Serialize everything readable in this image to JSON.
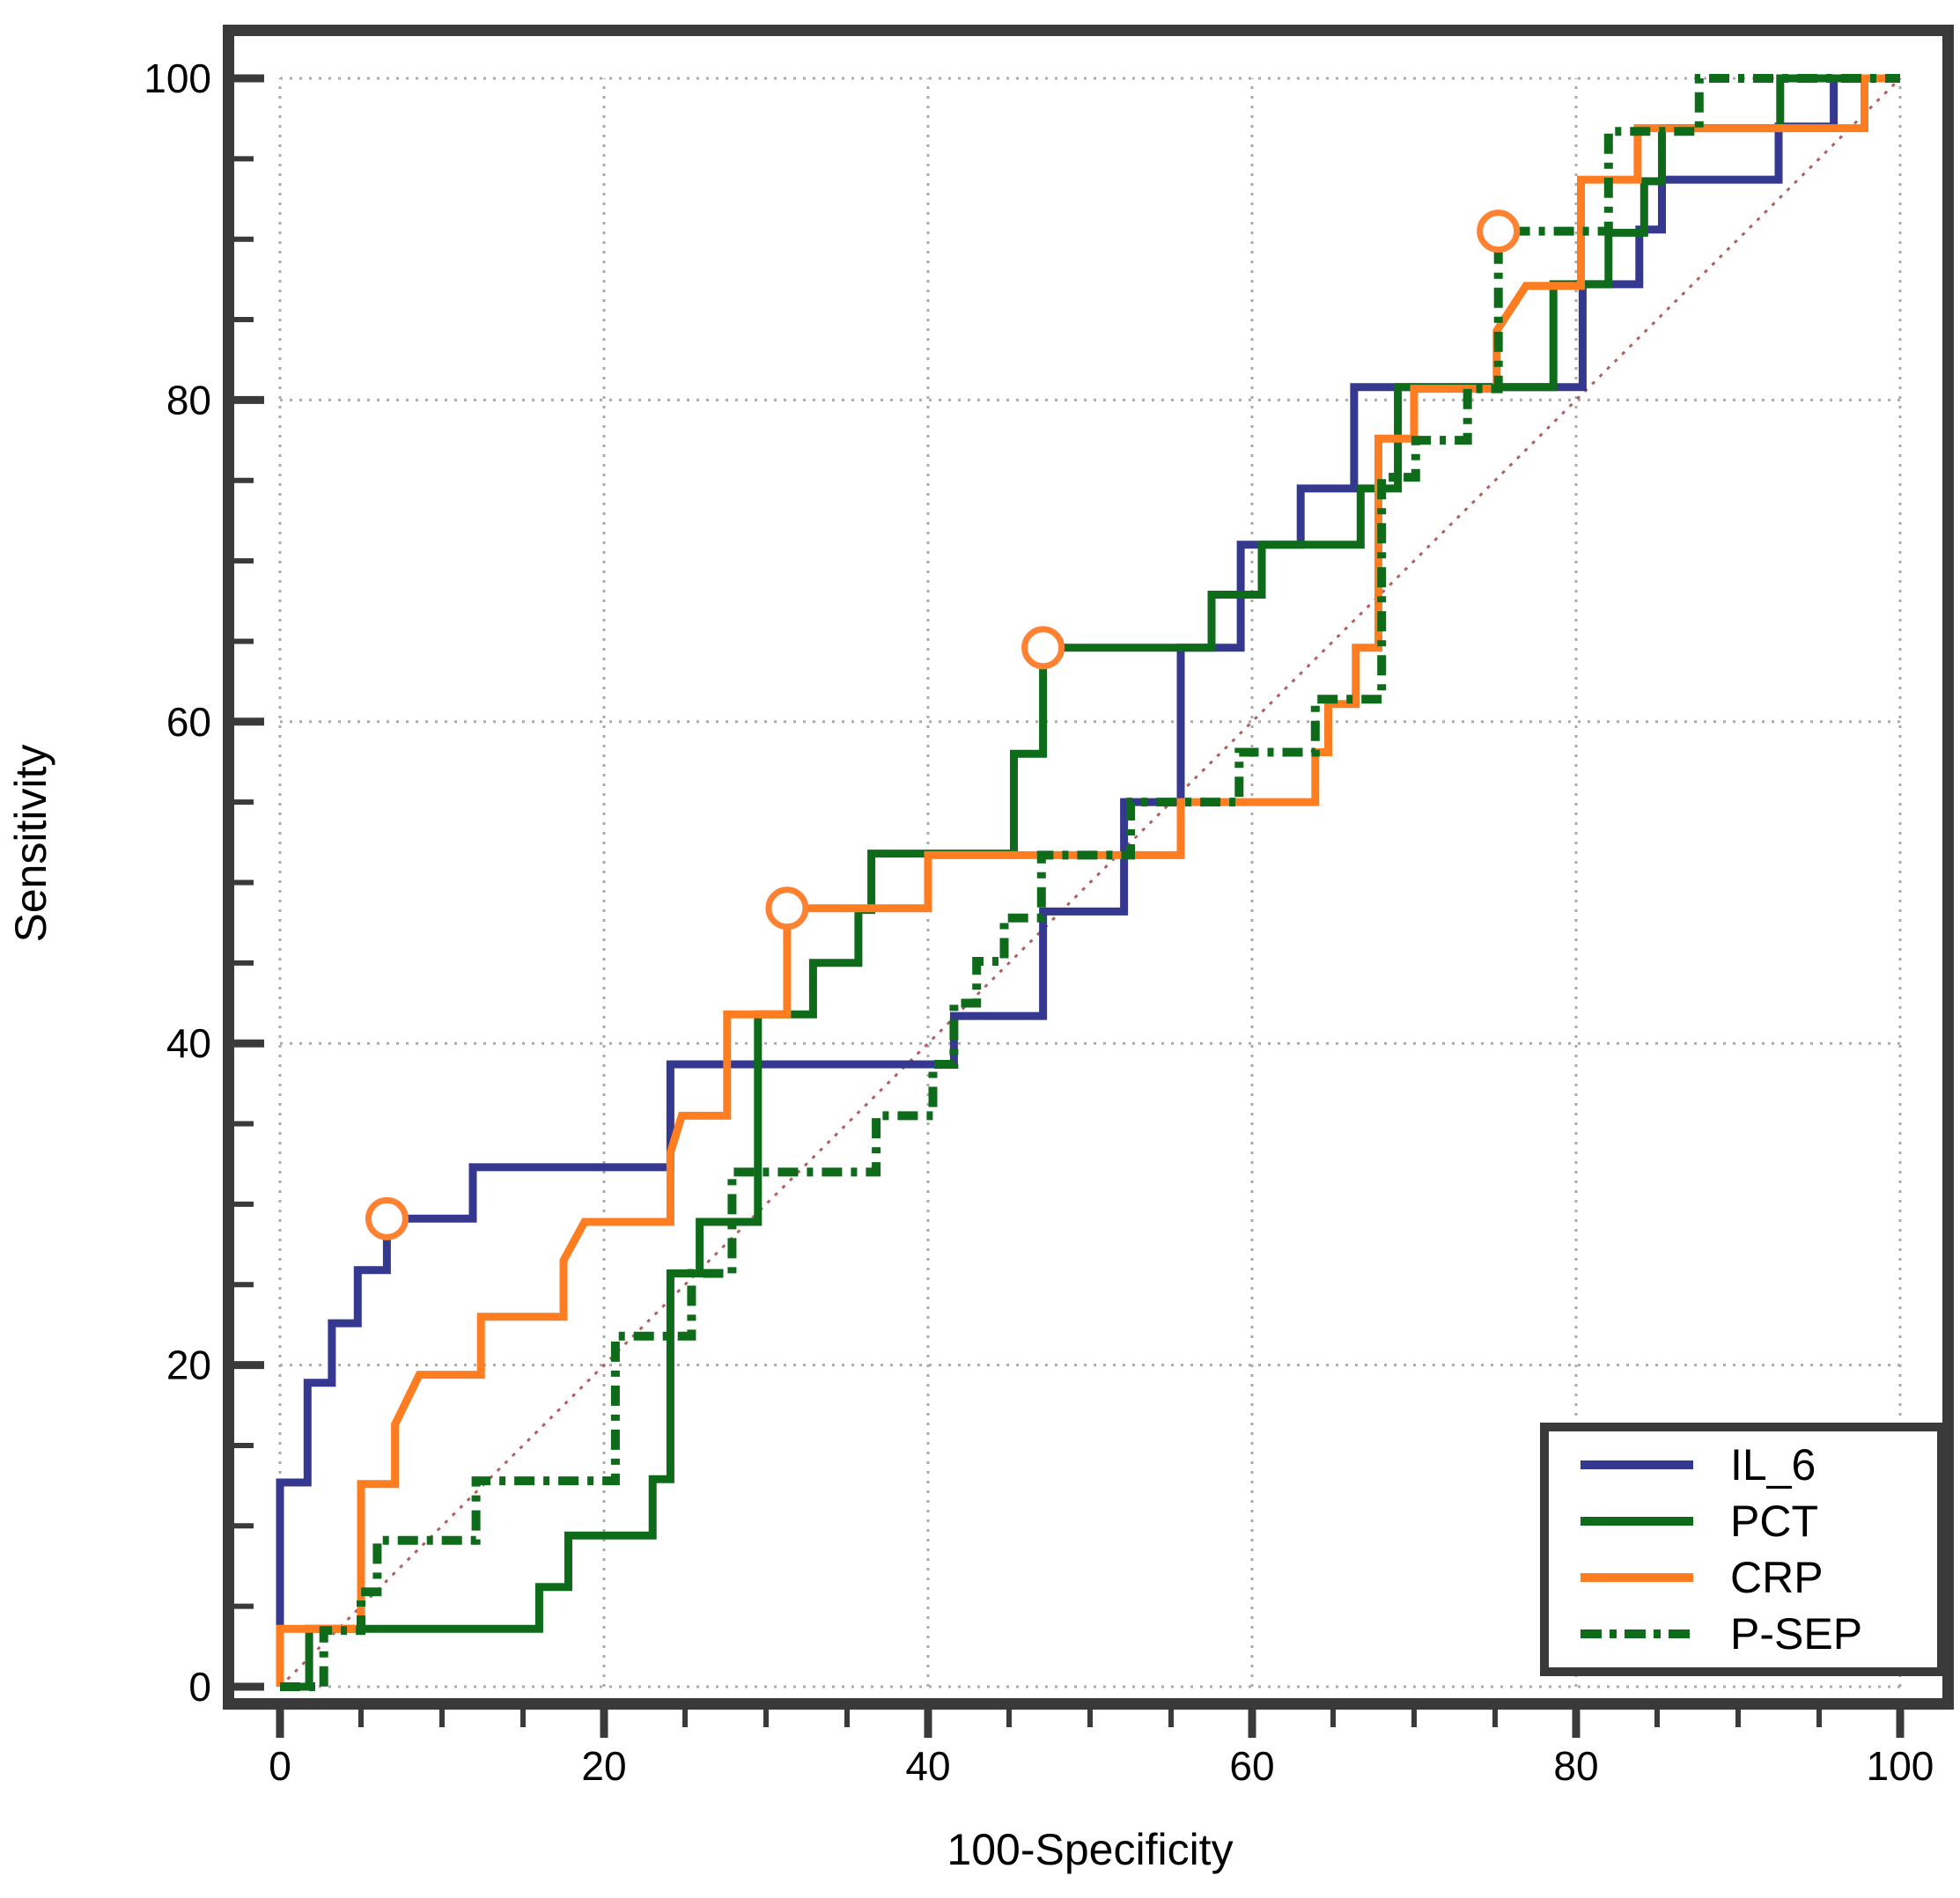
{
  "figure": {
    "background": "#ffffff",
    "frame_color": "#3a3a3a",
    "grid_color": "#ababab",
    "marker_color": "#ff8233",
    "marker_fill": "#ffffff"
  },
  "chart_data": {
    "type": "line",
    "subtype": "roc-curves",
    "title": "",
    "xlabel": "100-Specificity",
    "ylabel": "Sensitivity",
    "xlim": [
      0,
      100
    ],
    "ylim": [
      0,
      100
    ],
    "x_major_ticks": [
      0,
      20,
      40,
      60,
      80,
      100
    ],
    "y_major_ticks": [
      0,
      20,
      40,
      60,
      80,
      100
    ],
    "minor_tick_step": 5,
    "grid": "dotted gridlines at every 20 units on both axes",
    "legend_position": "bottom-right",
    "reference_line": {
      "name": "chance-diagonal",
      "from": [
        0,
        0
      ],
      "to": [
        100,
        100
      ],
      "style": "dotted",
      "color": "#b15f5f"
    },
    "series": [
      {
        "name": "IL_6",
        "color": "#34388f",
        "line_style": "solid",
        "operating_point": [
          6.6,
          29.1
        ],
        "points": [
          [
            0,
            0
          ],
          [
            0,
            12.7
          ],
          [
            1.7,
            12.7
          ],
          [
            1.7,
            18.9
          ],
          [
            3.2,
            18.9
          ],
          [
            3.2,
            22.6
          ],
          [
            4.8,
            22.6
          ],
          [
            4.8,
            25.9
          ],
          [
            6.6,
            25.9
          ],
          [
            6.6,
            29.1
          ],
          [
            11.9,
            29.1
          ],
          [
            11.9,
            32.3
          ],
          [
            24.1,
            32.3
          ],
          [
            24.1,
            38.7
          ],
          [
            41.6,
            38.7
          ],
          [
            41.6,
            41.7
          ],
          [
            47.1,
            41.7
          ],
          [
            47.1,
            48.2
          ],
          [
            52.1,
            48.2
          ],
          [
            52.1,
            55
          ],
          [
            55.6,
            55
          ],
          [
            55.6,
            64.6
          ],
          [
            59.3,
            64.6
          ],
          [
            59.3,
            71
          ],
          [
            63,
            71
          ],
          [
            63,
            74.5
          ],
          [
            66.3,
            74.5
          ],
          [
            66.3,
            80.8
          ],
          [
            80.4,
            80.8
          ],
          [
            80.4,
            87.2
          ],
          [
            83.9,
            87.2
          ],
          [
            83.9,
            90.6
          ],
          [
            85.3,
            90.6
          ],
          [
            85.3,
            93.7
          ],
          [
            92.5,
            93.7
          ],
          [
            92.5,
            97
          ],
          [
            95.9,
            97
          ],
          [
            95.9,
            100
          ],
          [
            100,
            100
          ]
        ]
      },
      {
        "name": "PCT",
        "color": "#0e6b1a",
        "line_style": "solid",
        "operating_point": [
          47.1,
          64.6
        ],
        "points": [
          [
            0,
            0
          ],
          [
            1.8,
            0
          ],
          [
            1.8,
            3.6
          ],
          [
            16,
            3.6
          ],
          [
            16,
            6.2
          ],
          [
            17.8,
            6.2
          ],
          [
            17.8,
            9.4
          ],
          [
            23,
            9.4
          ],
          [
            23,
            12.9
          ],
          [
            24.1,
            12.9
          ],
          [
            24.1,
            25.7
          ],
          [
            25.9,
            25.7
          ],
          [
            25.9,
            28.9
          ],
          [
            29.5,
            28.9
          ],
          [
            29.5,
            41.8
          ],
          [
            32.9,
            41.8
          ],
          [
            32.9,
            45
          ],
          [
            35.7,
            45
          ],
          [
            35.7,
            48.3
          ],
          [
            36.5,
            48.3
          ],
          [
            36.5,
            51.8
          ],
          [
            45.3,
            51.8
          ],
          [
            45.3,
            58
          ],
          [
            47.1,
            58
          ],
          [
            47.1,
            64.6
          ],
          [
            57.5,
            64.6
          ],
          [
            57.5,
            67.9
          ],
          [
            60.6,
            67.9
          ],
          [
            60.6,
            71
          ],
          [
            66.7,
            71
          ],
          [
            66.7,
            74.5
          ],
          [
            69,
            74.5
          ],
          [
            69,
            80.8
          ],
          [
            78.6,
            80.8
          ],
          [
            78.6,
            87.2
          ],
          [
            82,
            87.2
          ],
          [
            82,
            90.4
          ],
          [
            84.2,
            90.4
          ],
          [
            84.2,
            93.6
          ],
          [
            85.3,
            93.6
          ],
          [
            85.3,
            96.9
          ],
          [
            92.6,
            96.9
          ],
          [
            92.6,
            100
          ],
          [
            100,
            100
          ]
        ]
      },
      {
        "name": "CRP",
        "color": "#ff7d21",
        "line_style": "solid",
        "operating_point": [
          31.3,
          48.4
        ],
        "points": [
          [
            0,
            0
          ],
          [
            0,
            3.6
          ],
          [
            5,
            3.6
          ],
          [
            5,
            12.6
          ],
          [
            7.1,
            12.6
          ],
          [
            7.1,
            16.3
          ],
          [
            8.6,
            19.4
          ],
          [
            12.4,
            19.4
          ],
          [
            12.4,
            23
          ],
          [
            17.5,
            23
          ],
          [
            17.5,
            26.5
          ],
          [
            18.8,
            28.9
          ],
          [
            24.1,
            28.9
          ],
          [
            24.1,
            33.2
          ],
          [
            24.8,
            35.5
          ],
          [
            27.6,
            35.5
          ],
          [
            27.6,
            41.8
          ],
          [
            31.3,
            41.8
          ],
          [
            31.3,
            48.4
          ],
          [
            40,
            48.4
          ],
          [
            40,
            51.7
          ],
          [
            55.6,
            51.7
          ],
          [
            55.6,
            55
          ],
          [
            63.9,
            55
          ],
          [
            63.9,
            58.1
          ],
          [
            64.7,
            58.1
          ],
          [
            64.7,
            61.1
          ],
          [
            66.4,
            61.1
          ],
          [
            66.4,
            64.6
          ],
          [
            67.8,
            64.6
          ],
          [
            67.8,
            77.6
          ],
          [
            70,
            77.6
          ],
          [
            70,
            80.7
          ],
          [
            75.1,
            80.7
          ],
          [
            75.1,
            84.3
          ],
          [
            76.9,
            87.1
          ],
          [
            80.3,
            87.1
          ],
          [
            80.3,
            93.7
          ],
          [
            83.8,
            93.7
          ],
          [
            83.8,
            96.9
          ],
          [
            97.8,
            96.9
          ],
          [
            97.8,
            100
          ],
          [
            100,
            100
          ]
        ]
      },
      {
        "name": "P-SEP",
        "color": "#0e6b1a",
        "line_style": "dash-dot",
        "operating_point": [
          75.2,
          90.5
        ],
        "points": [
          [
            0,
            0
          ],
          [
            2.7,
            0
          ],
          [
            2.7,
            3.5
          ],
          [
            5,
            3.5
          ],
          [
            5,
            5.9
          ],
          [
            6,
            5.9
          ],
          [
            6,
            9.1
          ],
          [
            12.1,
            9.1
          ],
          [
            12.1,
            12.8
          ],
          [
            20.7,
            12.8
          ],
          [
            20.7,
            21.8
          ],
          [
            25.4,
            21.8
          ],
          [
            25.4,
            25.7
          ],
          [
            27.9,
            25.7
          ],
          [
            27.9,
            32
          ],
          [
            36.8,
            32
          ],
          [
            36.8,
            35.5
          ],
          [
            40.3,
            35.5
          ],
          [
            40.3,
            38.7
          ],
          [
            41.6,
            38.7
          ],
          [
            41.6,
            42.5
          ],
          [
            43,
            42.5
          ],
          [
            43,
            45.1
          ],
          [
            44.7,
            45.1
          ],
          [
            44.7,
            47.8
          ],
          [
            47,
            47.8
          ],
          [
            47,
            51.7
          ],
          [
            52.5,
            51.7
          ],
          [
            52.5,
            55
          ],
          [
            59.2,
            55
          ],
          [
            59.2,
            58.1
          ],
          [
            63.9,
            58.1
          ],
          [
            63.9,
            61.4
          ],
          [
            68,
            61.4
          ],
          [
            68,
            75.2
          ],
          [
            70.1,
            75.2
          ],
          [
            70.1,
            77.5
          ],
          [
            73.3,
            77.5
          ],
          [
            73.3,
            80.7
          ],
          [
            75.2,
            80.7
          ],
          [
            75.2,
            90.5
          ],
          [
            82,
            90.5
          ],
          [
            82,
            96.7
          ],
          [
            87.6,
            96.7
          ],
          [
            87.6,
            100
          ],
          [
            100,
            100
          ]
        ]
      }
    ]
  }
}
